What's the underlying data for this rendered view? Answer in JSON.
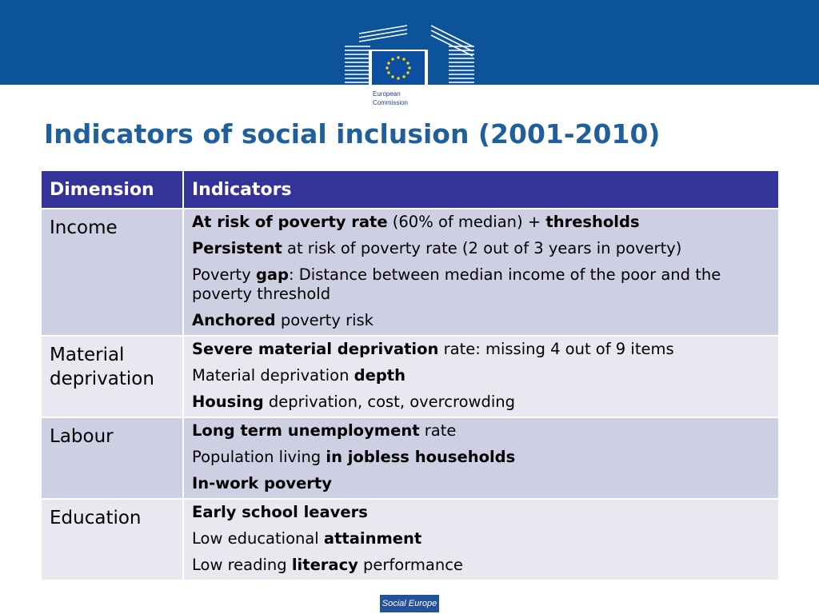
{
  "header": {
    "logo_text_line1": "European",
    "logo_text_line2": "Commission"
  },
  "title": "Indicators of social inclusion (2001-2010)",
  "table": {
    "headers": [
      "Dimension",
      "Indicators"
    ],
    "rows": [
      {
        "dimension": "Income",
        "indicators": [
          [
            {
              "t": "At risk of poverty rate",
              "b": true
            },
            {
              "t": " (60% of median) + ",
              "b": false
            },
            {
              "t": "thresholds",
              "b": true
            }
          ],
          [
            {
              "t": "Persistent",
              "b": true
            },
            {
              "t": " at risk of poverty rate (2 out of 3 years in poverty)",
              "b": false
            }
          ],
          [
            {
              "t": "Poverty ",
              "b": false
            },
            {
              "t": "gap",
              "b": true
            },
            {
              "t": ": Distance between median income of the poor and the poverty threshold",
              "b": false
            }
          ],
          [
            {
              "t": "Anchored",
              "b": true
            },
            {
              "t": " poverty risk",
              "b": false
            }
          ]
        ]
      },
      {
        "dimension": "Material deprivation",
        "indicators": [
          [
            {
              "t": "Severe material deprivation",
              "b": true
            },
            {
              "t": " rate: missing 4 out of 9 items",
              "b": false
            }
          ],
          [
            {
              "t": "Material deprivation ",
              "b": false
            },
            {
              "t": "depth",
              "b": true
            }
          ],
          [
            {
              "t": "Housing",
              "b": true
            },
            {
              "t": " deprivation, cost, overcrowding",
              "b": false
            }
          ]
        ]
      },
      {
        "dimension": "Labour",
        "indicators": [
          [
            {
              "t": "Long term unemployment",
              "b": true
            },
            {
              "t": " rate",
              "b": false
            }
          ],
          [
            {
              "t": "Population living ",
              "b": false
            },
            {
              "t": "in jobless households",
              "b": true
            }
          ],
          [
            {
              "t": "In-work poverty",
              "b": true
            }
          ]
        ]
      },
      {
        "dimension": "Education",
        "indicators": [
          [
            {
              "t": "Early school leavers",
              "b": true
            }
          ],
          [
            {
              "t": "Low educational ",
              "b": false
            },
            {
              "t": "attainment",
              "b": true
            }
          ],
          [
            {
              "t": "Low reading ",
              "b": false
            },
            {
              "t": "literacy",
              "b": true
            },
            {
              "t": " performance",
              "b": false
            }
          ]
        ]
      }
    ]
  },
  "footer": {
    "badge": "Social Europe"
  },
  "colors": {
    "topbar": "#0d5399",
    "title": "#1f5f9c",
    "table_header": "#333399",
    "row_odd": "#cfcfe3",
    "row_even": "#e8e8f0",
    "flag_blue": "#0b4ea2",
    "star_yellow": "#ffdd00"
  }
}
